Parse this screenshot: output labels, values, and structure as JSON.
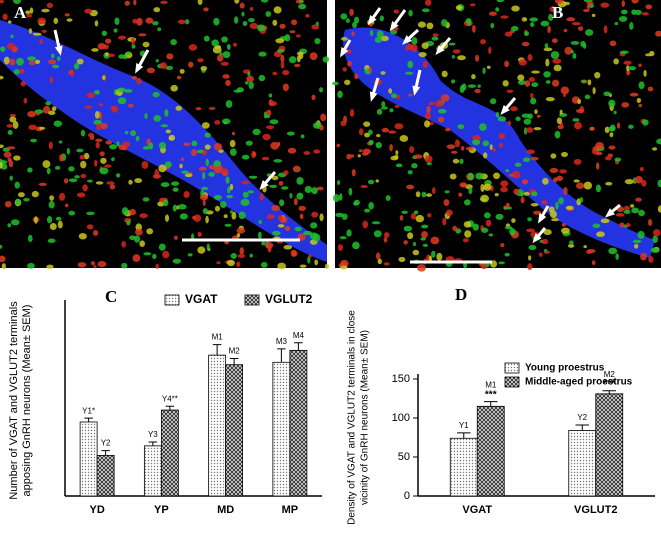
{
  "images": [
    {
      "label": "A"
    },
    {
      "label": "B"
    }
  ],
  "chart_data": [
    {
      "type": "bar",
      "panel_label": "C",
      "ylabel": [
        "Number of VGAT and VGLUT2 terminals",
        "apposing GnRH neurons (Mean± SEM)"
      ],
      "categories": [
        "YD",
        "YP",
        "MD",
        "MP"
      ],
      "series": [
        {
          "name": "VGAT",
          "color": "#d9d9d9",
          "values": [
            15.5,
            10.5,
            29.5,
            28
          ],
          "errors": [
            0.8,
            0.8,
            2.2,
            2.8
          ],
          "labels": [
            "Y1*",
            "Y3",
            "M1",
            "M3"
          ]
        },
        {
          "name": "VGLUT2",
          "color": "#555555",
          "values": [
            8.5,
            18,
            27.5,
            30.5
          ],
          "errors": [
            1,
            0.8,
            1.3,
            1.6
          ],
          "labels": [
            "Y2",
            "Y4**",
            "M2",
            "M4"
          ]
        }
      ],
      "ylim": [
        0,
        40
      ],
      "legend": "top"
    },
    {
      "type": "bar",
      "panel_label": "D",
      "ylabel": [
        "Density of VGAT and VGLUT2 terminals in close",
        "vicinity of GnRH neurons (Mean± SEM)"
      ],
      "categories": [
        "VGAT",
        "VGLUT2"
      ],
      "series": [
        {
          "name": "Young  proestrus",
          "color": "#d9d9d9",
          "values": [
            74,
            84
          ],
          "errors": [
            7,
            7
          ],
          "labels": [
            "Y1",
            "Y2"
          ]
        },
        {
          "name": "Middle-aged proestrus",
          "color": "#555555",
          "values": [
            115,
            131
          ],
          "errors": [
            6,
            4
          ],
          "labels": [
            "M1",
            "M2"
          ],
          "marks": [
            "***",
            "***"
          ]
        }
      ],
      "ylim": [
        0,
        150
      ],
      "yticks": [
        0,
        50,
        100,
        150
      ],
      "legend": "upper-left"
    }
  ]
}
